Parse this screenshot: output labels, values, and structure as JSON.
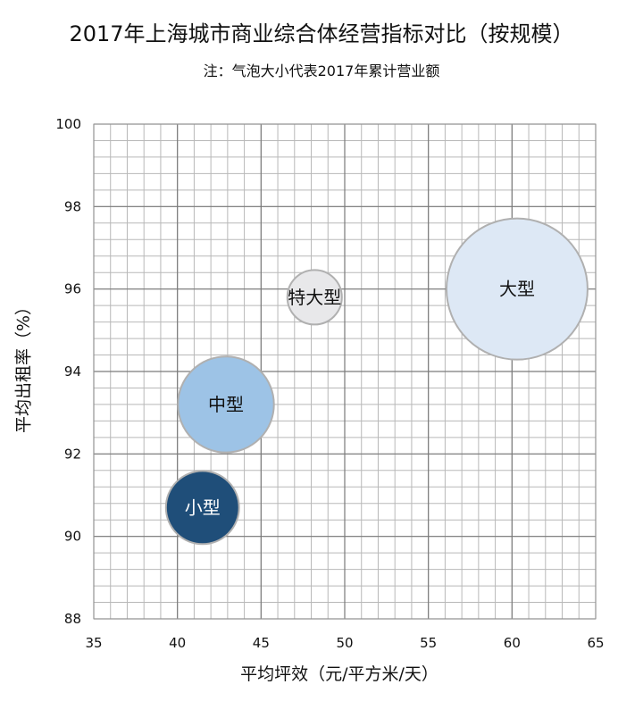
{
  "chart_data": {
    "type": "bubble",
    "title": "2017年上海城市商业综合体经营指标对比（按规模）",
    "subtitle": "注：气泡大小代表2017年累计营业额",
    "xlabel": "平均坪效（元/平方米/天）",
    "ylabel": "平均出租率（%）",
    "xlim": [
      35,
      65
    ],
    "ylim": [
      88,
      100
    ],
    "xticks": [
      35,
      40,
      45,
      50,
      55,
      60,
      65
    ],
    "yticks": [
      88,
      90,
      92,
      94,
      96,
      98,
      100
    ],
    "xtick_labels": [
      "35",
      "40",
      "45",
      "50",
      "55",
      "60",
      "65"
    ],
    "ytick_labels": [
      "88",
      "90",
      "92",
      "94",
      "96",
      "98",
      "100"
    ],
    "grid": true,
    "minor_grid_per_major": 5,
    "series": [
      {
        "label": "特大型",
        "x": 48.2,
        "y": 95.8,
        "size": 1.0,
        "color": "#e8e8ea",
        "text_color": "#111111"
      },
      {
        "label": "大型",
        "x": 60.3,
        "y": 96.0,
        "size": 6.7,
        "color": "#dde8f5",
        "text_color": "#111111"
      },
      {
        "label": "中型",
        "x": 42.9,
        "y": 93.2,
        "size": 3.1,
        "color": "#9dc3e6",
        "text_color": "#111111"
      },
      {
        "label": "小型",
        "x": 41.5,
        "y": 90.7,
        "size": 1.8,
        "color": "#1f4e79",
        "text_color": "#ffffff"
      }
    ]
  }
}
